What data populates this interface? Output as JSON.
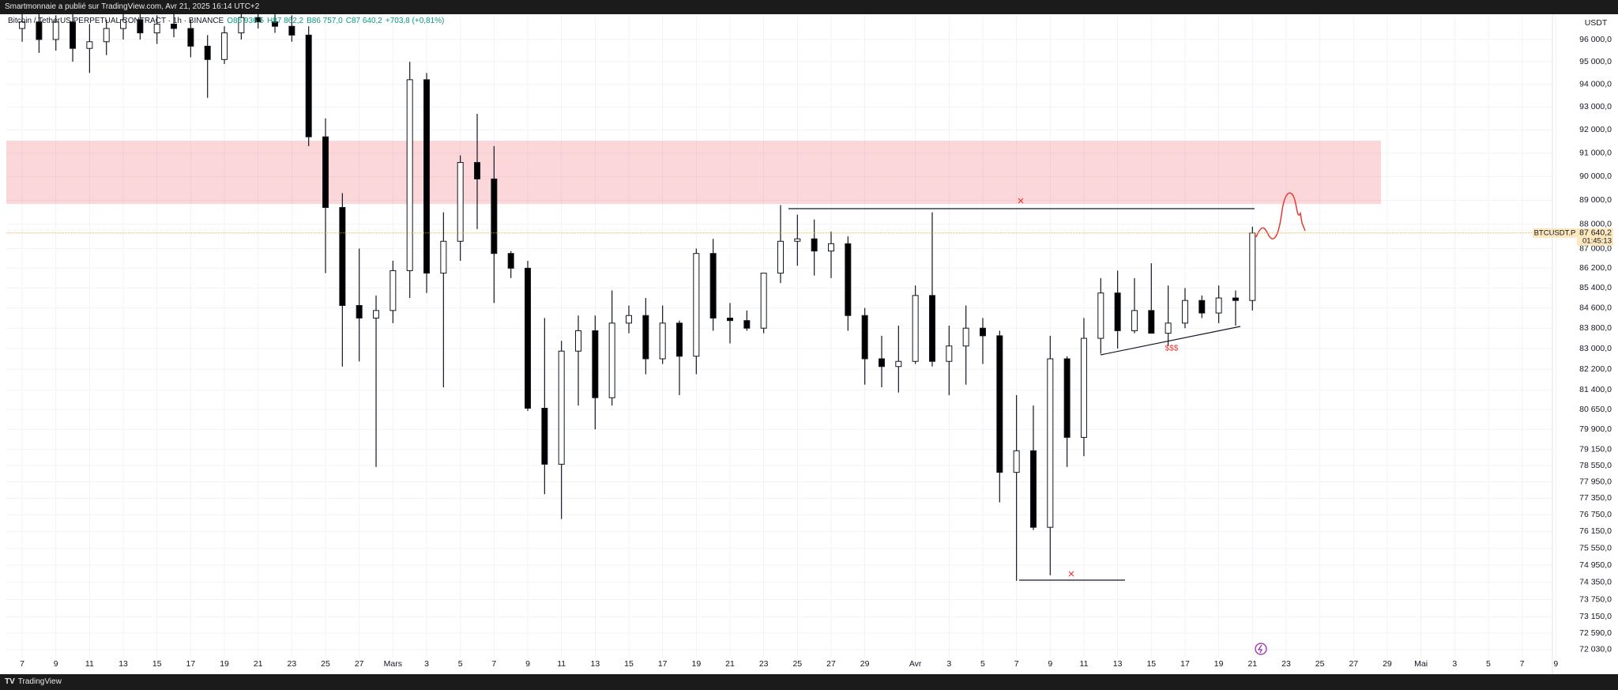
{
  "top_bar": {
    "caption": "Smartmonnaie a publié sur TradingView.com, Avr 21, 2025 16:14 UTC+2"
  },
  "footer": {
    "brand": "TradingView"
  },
  "chart_data": {
    "type": "candlestick",
    "symbol_title": "Bitcoin / TetherUS PERPETUAL CONTRACT · 1h · BINANCE",
    "ohlc_header": [
      "O86 936,5",
      "H87 862,2",
      "B86 757,0",
      "C87 640,2",
      "+703,8 (+0,81%)"
    ],
    "currency": "USDT",
    "log": true,
    "grid": true,
    "up_color": "#ffffff",
    "down_color": "#000000",
    "x": [
      0,
      1,
      2,
      3,
      4,
      5,
      6,
      7,
      8,
      9,
      10,
      11,
      12,
      13,
      14,
      15,
      16,
      17,
      18,
      19,
      20,
      21,
      22,
      23,
      24,
      25,
      26,
      27,
      28,
      29,
      30,
      31,
      32,
      33,
      34,
      35,
      36,
      37,
      38,
      39,
      40,
      41,
      42,
      43,
      44,
      45,
      46,
      47,
      48,
      49,
      50,
      51,
      52,
      53,
      54,
      55,
      56,
      57,
      58,
      59,
      60,
      61,
      62,
      63,
      64,
      65,
      66,
      67,
      68,
      69,
      70,
      71,
      72,
      73
    ],
    "open": [
      96500,
      96800,
      96000,
      96800,
      95600,
      95900,
      96500,
      96900,
      96300,
      96700,
      96500,
      95700,
      95100,
      96300,
      97000,
      96800,
      96600,
      96200,
      91700,
      88700,
      84700,
      84200,
      84500,
      86100,
      94200,
      86000,
      87300,
      90600,
      89900,
      86800,
      86200,
      80700,
      78600,
      82900,
      83700,
      81100,
      84000,
      84300,
      82600,
      84000,
      82700,
      86800,
      84200,
      84100,
      83800,
      86000,
      87300,
      87400,
      86900,
      87200,
      84300,
      82600,
      82300,
      82500,
      85100,
      82500,
      83100,
      83800,
      83500,
      78300,
      79100,
      76300,
      82600,
      79600,
      83400,
      85200,
      83700,
      84500,
      83600,
      84000,
      84900,
      84400,
      85000,
      84900
    ],
    "high": [
      97400,
      97200,
      97100,
      97300,
      96700,
      96900,
      97300,
      97300,
      97100,
      97200,
      96900,
      96200,
      96600,
      97300,
      97400,
      97300,
      97100,
      96600,
      92500,
      89300,
      87000,
      85100,
      86500,
      95000,
      94500,
      88500,
      90900,
      92700,
      91300,
      86900,
      86500,
      84200,
      83300,
      84300,
      84300,
      85300,
      84700,
      85000,
      84700,
      84100,
      87000,
      87400,
      84800,
      84500,
      86000,
      88800,
      88400,
      88200,
      87700,
      87500,
      84600,
      83500,
      83900,
      85500,
      88500,
      83900,
      84700,
      84200,
      83700,
      81200,
      80800,
      83500,
      82700,
      84200,
      85800,
      86100,
      85800,
      86400,
      85500,
      85400,
      85100,
      85500,
      85300,
      87900
    ],
    "low": [
      95900,
      95400,
      95500,
      95000,
      94500,
      95300,
      96000,
      96000,
      95800,
      96100,
      95200,
      93400,
      94900,
      96000,
      96500,
      96300,
      95900,
      91300,
      86000,
      82300,
      82500,
      78500,
      84000,
      85000,
      85200,
      81500,
      86500,
      87800,
      84800,
      85800,
      80600,
      77500,
      76600,
      80800,
      79900,
      80800,
      83600,
      82000,
      82400,
      81200,
      82000,
      83700,
      83200,
      83700,
      83600,
      85600,
      86300,
      85900,
      85800,
      83700,
      81600,
      81500,
      81300,
      82400,
      82300,
      81200,
      81600,
      82400,
      77200,
      74400,
      76200,
      74600,
      78500,
      78900,
      82800,
      83000,
      83600,
      83600,
      83100,
      83800,
      84200,
      84000,
      83900,
      84500
    ],
    "close": [
      96800,
      96000,
      96800,
      95600,
      95900,
      96500,
      96900,
      96300,
      96700,
      96500,
      95700,
      95100,
      96300,
      97000,
      96800,
      96600,
      96200,
      91700,
      88700,
      84700,
      84200,
      84500,
      86100,
      94200,
      86000,
      87300,
      90600,
      89900,
      86800,
      86200,
      80700,
      78600,
      82900,
      83700,
      81100,
      84000,
      84300,
      82600,
      84000,
      82700,
      86800,
      84200,
      84100,
      83800,
      86000,
      87300,
      87400,
      86900,
      87200,
      84300,
      82600,
      82300,
      82500,
      85100,
      82500,
      83100,
      83800,
      83500,
      78300,
      79100,
      76300,
      82600,
      79600,
      83400,
      85200,
      83700,
      84500,
      83600,
      84000,
      84900,
      84400,
      85000,
      84900,
      87640.2
    ],
    "xlim": [
      -0.94,
      90.8
    ],
    "ylim": [
      71760,
      97150
    ],
    "xticks": [
      {
        "value": 0,
        "label": "7"
      },
      {
        "value": 2,
        "label": "9"
      },
      {
        "value": 4,
        "label": "11"
      },
      {
        "value": 6,
        "label": "13"
      },
      {
        "value": 8,
        "label": "15"
      },
      {
        "value": 10,
        "label": "17"
      },
      {
        "value": 12,
        "label": "19"
      },
      {
        "value": 14,
        "label": "21"
      },
      {
        "value": 16,
        "label": "23"
      },
      {
        "value": 18,
        "label": "25"
      },
      {
        "value": 20,
        "label": "27"
      },
      {
        "value": 22,
        "label": "Mars"
      },
      {
        "value": 24,
        "label": "3"
      },
      {
        "value": 26,
        "label": "5"
      },
      {
        "value": 28,
        "label": "7"
      },
      {
        "value": 30,
        "label": "9"
      },
      {
        "value": 32,
        "label": "11"
      },
      {
        "value": 34,
        "label": "13"
      },
      {
        "value": 36,
        "label": "15"
      },
      {
        "value": 38,
        "label": "17"
      },
      {
        "value": 40,
        "label": "19"
      },
      {
        "value": 42,
        "label": "21"
      },
      {
        "value": 44,
        "label": "23"
      },
      {
        "value": 46,
        "label": "25"
      },
      {
        "value": 48,
        "label": "27"
      },
      {
        "value": 50,
        "label": "29"
      },
      {
        "value": 53,
        "label": "Avr"
      },
      {
        "value": 55,
        "label": "3"
      },
      {
        "value": 57,
        "label": "5"
      },
      {
        "value": 59,
        "label": "7"
      },
      {
        "value": 61,
        "label": "9"
      },
      {
        "value": 63,
        "label": "11"
      },
      {
        "value": 65,
        "label": "13"
      },
      {
        "value": 67,
        "label": "15"
      },
      {
        "value": 69,
        "label": "17"
      },
      {
        "value": 71,
        "label": "19"
      },
      {
        "value": 73,
        "label": "21"
      },
      {
        "value": 75,
        "label": "23"
      },
      {
        "value": 77,
        "label": "25"
      },
      {
        "value": 79,
        "label": "27"
      },
      {
        "value": 81,
        "label": "29"
      },
      {
        "value": 83,
        "label": "Mai"
      },
      {
        "value": 85,
        "label": "3"
      },
      {
        "value": 87,
        "label": "5"
      },
      {
        "value": 89,
        "label": "7"
      },
      {
        "value": 91,
        "label": "9"
      }
    ],
    "yticks": [
      {
        "value": 96000,
        "label": "96 000,0"
      },
      {
        "value": 95000,
        "label": "95 000,0"
      },
      {
        "value": 94000,
        "label": "94 000,0"
      },
      {
        "value": 93000,
        "label": "93 000,0"
      },
      {
        "value": 92000,
        "label": "92 000,0"
      },
      {
        "value": 91000,
        "label": "91 000,0"
      },
      {
        "value": 90000,
        "label": "90 000,0"
      },
      {
        "value": 89000,
        "label": "89 000,0"
      },
      {
        "value": 88000,
        "label": "88 000,0"
      },
      {
        "value": 87000,
        "label": "87 000,0"
      },
      {
        "value": 86200,
        "label": "86 200,0"
      },
      {
        "value": 85400,
        "label": "85 400,0"
      },
      {
        "value": 84600,
        "label": "84 600,0"
      },
      {
        "value": 83800,
        "label": "83 800,0"
      },
      {
        "value": 83000,
        "label": "83 000,0"
      },
      {
        "value": 82200,
        "label": "82 200,0"
      },
      {
        "value": 81400,
        "label": "81 400,0"
      },
      {
        "value": 80650,
        "label": "80 650,0"
      },
      {
        "value": 79900,
        "label": "79 900,0"
      },
      {
        "value": 79150,
        "label": "79 150,0"
      },
      {
        "value": 78550,
        "label": "78 550,0"
      },
      {
        "value": 77950,
        "label": "77 950,0"
      },
      {
        "value": 77350,
        "label": "77 350,0"
      },
      {
        "value": 76750,
        "label": "76 750,0"
      },
      {
        "value": 76150,
        "label": "76 150,0"
      },
      {
        "value": 75550,
        "label": "75 550,0"
      },
      {
        "value": 74950,
        "label": "74 950,0"
      },
      {
        "value": 74350,
        "label": "74 350,0"
      },
      {
        "value": 73750,
        "label": "73 750,0"
      },
      {
        "value": 73150,
        "label": "73 150,0"
      },
      {
        "value": 72590,
        "label": "72 590,0"
      },
      {
        "value": 72030,
        "label": "72 030,0"
      }
    ],
    "last_price": 87640.2,
    "last_price_label": "87 640,2",
    "last_price_symbol": "BTCUSDT.P",
    "countdown": "01:45:13",
    "last_price_color": "#f5a623",
    "annotation": "$$$"
  }
}
